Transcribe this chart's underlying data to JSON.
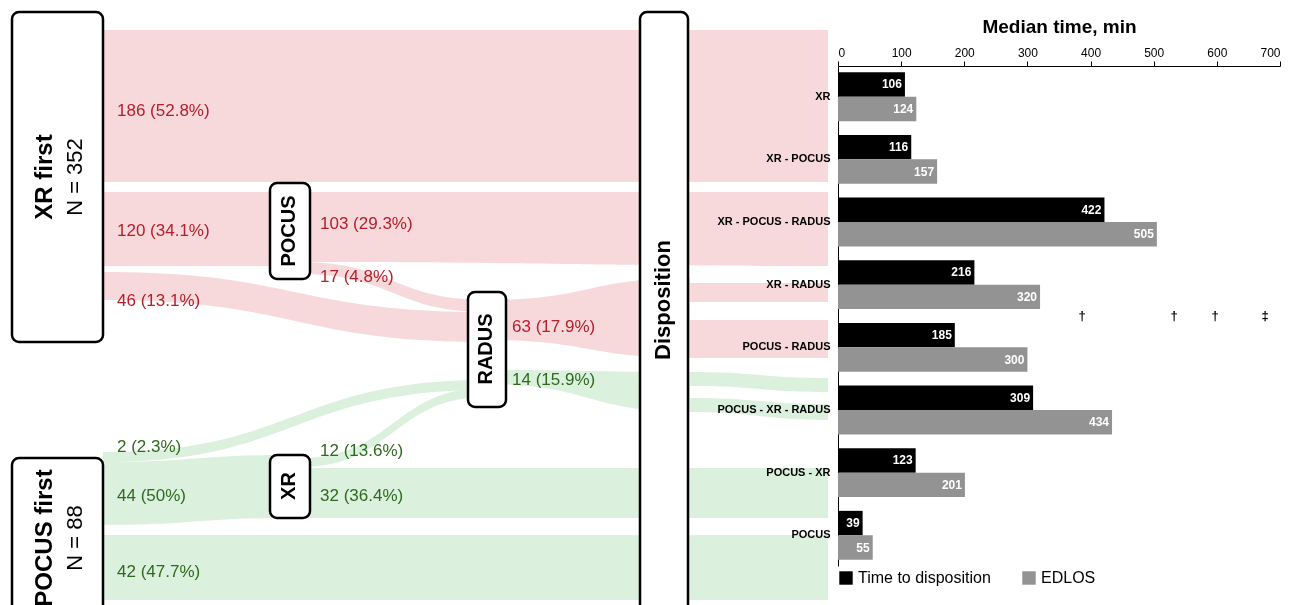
{
  "chart_data": [
    {
      "type": "other",
      "annotations": [
        "XR first",
        "N = 352",
        "POCUS first",
        "N = 88",
        "POCUS",
        "RADUS",
        "XR",
        "Disposition",
        "186 (52.8%)",
        "120 (34.1%)",
        "103 (29.3%)",
        "17 (4.8%)",
        "46 (13.1%)",
        "63 (17.9%)",
        "14 (15.9%)",
        "2 (2.3%)",
        "12 (13.6%)",
        "44 (50%)",
        "32 (36.4%)",
        "42 (47.7%)"
      ]
    },
    {
      "type": "bar",
      "orientation": "horizontal",
      "xlabel": "Median time, min",
      "categories": [
        "XR",
        "XR - POCUS",
        "XR - POCUS - RADUS",
        "XR - RADUS",
        "POCUS - RADUS",
        "POCUS - XR - RADUS",
        "POCUS - XR",
        "POCUS"
      ],
      "series": [
        {
          "name": "Time to disposition",
          "color": "#000000",
          "values": [
            106,
            116,
            422,
            216,
            185,
            309,
            123,
            39
          ]
        },
        {
          "name": "EDLOS",
          "color": "#939393",
          "values": [
            124,
            157,
            505,
            320,
            300,
            434,
            201,
            55
          ]
        }
      ],
      "xlim": [
        0,
        700
      ],
      "xticks": [
        0,
        100,
        200,
        300,
        400,
        500,
        600,
        700
      ],
      "data_labels": true,
      "legend": "bottom",
      "grid": false,
      "annotations": [
        "†",
        "†",
        "†",
        "‡"
      ]
    }
  ]
}
